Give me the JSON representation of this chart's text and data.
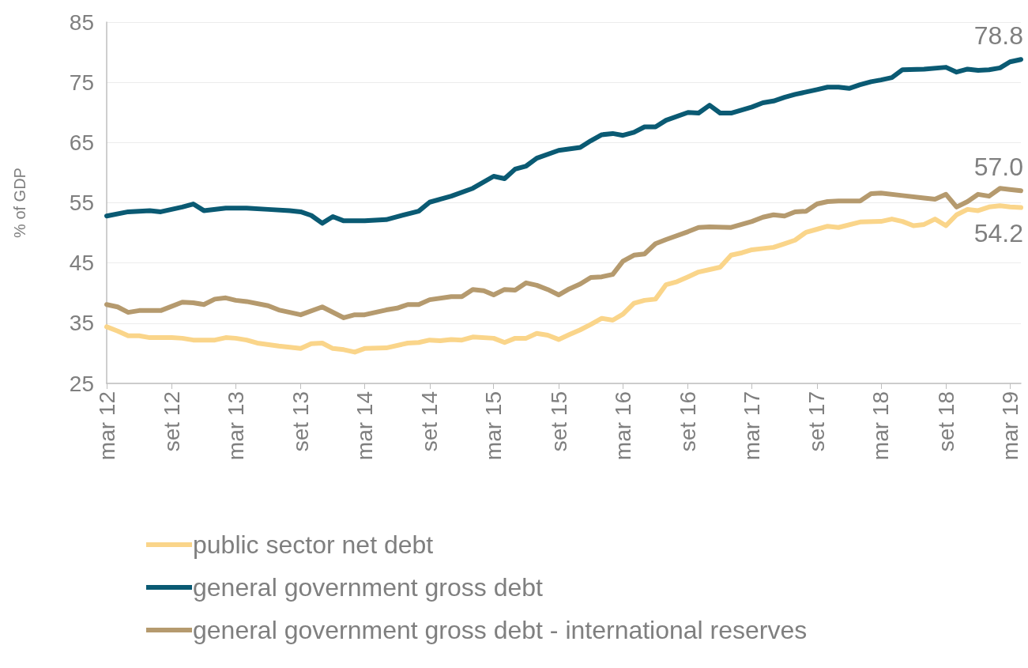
{
  "chart_data": {
    "type": "line",
    "ylabel": "% of GDP",
    "xlim": [
      "2012-03",
      "2019-04"
    ],
    "xticks": [
      {
        "value": "2012-03",
        "label": "mar 12"
      },
      {
        "value": "2012-09",
        "label": "set 12"
      },
      {
        "value": "2013-03",
        "label": "mar 13"
      },
      {
        "value": "2013-09",
        "label": "set 13"
      },
      {
        "value": "2014-03",
        "label": "mar 14"
      },
      {
        "value": "2014-09",
        "label": "set 14"
      },
      {
        "value": "2015-03",
        "label": "mar 15"
      },
      {
        "value": "2015-09",
        "label": "set 15"
      },
      {
        "value": "2016-03",
        "label": "mar 16"
      },
      {
        "value": "2016-09",
        "label": "set 16"
      },
      {
        "value": "2017-03",
        "label": "mar 17"
      },
      {
        "value": "2017-09",
        "label": "set 17"
      },
      {
        "value": "2018-03",
        "label": "mar 18"
      },
      {
        "value": "2018-09",
        "label": "set 18"
      },
      {
        "value": "2019-03",
        "label": "mar 19"
      }
    ],
    "ylim": [
      25,
      85
    ],
    "yticks": [
      25,
      35,
      45,
      55,
      65,
      75,
      85
    ],
    "grid": "y",
    "legend": "bottom",
    "marker": "none",
    "line_style": "solid",
    "series": [
      {
        "name": "public sector net debt",
        "color": "#fad58a",
        "x": [
          "2012-03",
          "2012-04",
          "2012-05",
          "2012-06",
          "2012-07",
          "2012-09",
          "2012-10",
          "2012-11",
          "2012-12",
          "2013-01",
          "2013-02",
          "2013-03",
          "2013-04",
          "2013-05",
          "2013-07",
          "2013-09",
          "2013-10",
          "2013-11",
          "2013-12",
          "2014-01",
          "2014-02",
          "2014-03",
          "2014-05",
          "2014-07",
          "2014-08",
          "2014-09",
          "2014-10",
          "2014-11",
          "2014-12",
          "2015-01",
          "2015-03",
          "2015-04",
          "2015-05",
          "2015-06",
          "2015-07",
          "2015-08",
          "2015-09",
          "2015-10",
          "2015-11",
          "2015-12",
          "2016-01",
          "2016-02",
          "2016-03",
          "2016-04",
          "2016-05",
          "2016-06",
          "2016-07",
          "2016-08",
          "2016-09",
          "2016-10",
          "2016-11",
          "2016-12",
          "2017-01",
          "2017-02",
          "2017-03",
          "2017-04",
          "2017-05",
          "2017-06",
          "2017-07",
          "2017-08",
          "2017-09",
          "2017-10",
          "2017-11",
          "2018-01",
          "2018-03",
          "2018-04",
          "2018-05",
          "2018-06",
          "2018-07",
          "2018-08",
          "2018-09",
          "2018-10",
          "2018-11",
          "2018-12",
          "2019-01",
          "2019-02",
          "2019-03",
          "2019-04"
        ],
        "values": [
          34.4,
          33.7,
          32.9,
          32.9,
          32.6,
          32.6,
          32.5,
          32.2,
          32.2,
          32.2,
          32.6,
          32.5,
          32.2,
          31.7,
          31.2,
          30.8,
          31.6,
          31.7,
          30.8,
          30.6,
          30.2,
          30.8,
          30.9,
          31.7,
          31.8,
          32.2,
          32.1,
          32.3,
          32.2,
          32.7,
          32.5,
          31.8,
          32.5,
          32.5,
          33.3,
          33.0,
          32.3,
          33.1,
          33.9,
          34.8,
          35.8,
          35.5,
          36.5,
          38.3,
          38.8,
          39.0,
          41.4,
          41.9,
          42.7,
          43.5,
          43.9,
          44.3,
          46.3,
          46.7,
          47.2,
          47.4,
          47.6,
          48.2,
          48.8,
          50.1,
          50.6,
          51.1,
          50.9,
          51.8,
          51.9,
          52.3,
          51.9,
          51.2,
          51.4,
          52.3,
          51.2,
          53.0,
          53.9,
          53.7,
          54.3,
          54.5,
          54.3,
          54.2
        ]
      },
      {
        "name": "general government gross debt",
        "color": "#0a5a73",
        "x": [
          "2012-03",
          "2012-05",
          "2012-07",
          "2012-08",
          "2012-10",
          "2012-11",
          "2012-12",
          "2013-02",
          "2013-04",
          "2013-06",
          "2013-08",
          "2013-09",
          "2013-10",
          "2013-11",
          "2013-12",
          "2014-01",
          "2014-03",
          "2014-05",
          "2014-06",
          "2014-08",
          "2014-09",
          "2014-11",
          "2015-01",
          "2015-03",
          "2015-04",
          "2015-05",
          "2015-06",
          "2015-07",
          "2015-09",
          "2015-11",
          "2015-12",
          "2016-01",
          "2016-02",
          "2016-03",
          "2016-04",
          "2016-05",
          "2016-06",
          "2016-07",
          "2016-09",
          "2016-10",
          "2016-11",
          "2016-12",
          "2017-01",
          "2017-03",
          "2017-04",
          "2017-05",
          "2017-06",
          "2017-07",
          "2017-09",
          "2017-10",
          "2017-11",
          "2017-12",
          "2018-01",
          "2018-02",
          "2018-03",
          "2018-04",
          "2018-05",
          "2018-07",
          "2018-09",
          "2018-10",
          "2018-11",
          "2018-12",
          "2019-01",
          "2019-02",
          "2019-03",
          "2019-04"
        ],
        "values": [
          52.8,
          53.5,
          53.7,
          53.5,
          54.3,
          54.8,
          53.7,
          54.1,
          54.1,
          53.9,
          53.7,
          53.5,
          52.9,
          51.6,
          52.7,
          52.0,
          52.0,
          52.2,
          52.7,
          53.6,
          55.1,
          56.1,
          57.4,
          59.4,
          59.0,
          60.6,
          61.1,
          62.4,
          63.7,
          64.2,
          65.3,
          66.3,
          66.5,
          66.2,
          66.7,
          67.6,
          67.6,
          68.7,
          70.0,
          69.9,
          71.2,
          69.9,
          69.9,
          70.9,
          71.6,
          71.9,
          72.5,
          73.0,
          73.8,
          74.2,
          74.2,
          74.0,
          74.6,
          75.1,
          75.4,
          75.8,
          77.1,
          77.2,
          77.5,
          76.7,
          77.2,
          77.0,
          77.1,
          77.4,
          78.4,
          78.8
        ]
      },
      {
        "name": "general government gross debt - international reserves",
        "color": "#b59a6e",
        "x": [
          "2012-03",
          "2012-04",
          "2012-05",
          "2012-06",
          "2012-08",
          "2012-10",
          "2012-11",
          "2012-12",
          "2013-01",
          "2013-02",
          "2013-03",
          "2013-04",
          "2013-06",
          "2013-07",
          "2013-09",
          "2013-11",
          "2014-01",
          "2014-02",
          "2014-03",
          "2014-05",
          "2014-06",
          "2014-07",
          "2014-08",
          "2014-09",
          "2014-11",
          "2014-12",
          "2015-01",
          "2015-02",
          "2015-03",
          "2015-04",
          "2015-05",
          "2015-06",
          "2015-07",
          "2015-08",
          "2015-09",
          "2015-10",
          "2015-11",
          "2015-12",
          "2016-01",
          "2016-02",
          "2016-03",
          "2016-04",
          "2016-05",
          "2016-06",
          "2016-07",
          "2016-09",
          "2016-10",
          "2016-11",
          "2017-01",
          "2017-03",
          "2017-04",
          "2017-05",
          "2017-06",
          "2017-07",
          "2017-08",
          "2017-09",
          "2017-10",
          "2017-11",
          "2017-12",
          "2018-01",
          "2018-02",
          "2018-03",
          "2018-05",
          "2018-07",
          "2018-08",
          "2018-09",
          "2018-10",
          "2018-11",
          "2018-12",
          "2019-01",
          "2019-02",
          "2019-03",
          "2019-04"
        ],
        "values": [
          38.1,
          37.7,
          36.8,
          37.1,
          37.1,
          38.5,
          38.4,
          38.1,
          39.0,
          39.2,
          38.8,
          38.6,
          37.9,
          37.2,
          36.4,
          37.7,
          35.9,
          36.4,
          36.4,
          37.2,
          37.5,
          38.1,
          38.1,
          38.9,
          39.4,
          39.4,
          40.6,
          40.4,
          39.7,
          40.6,
          40.5,
          41.7,
          41.3,
          40.6,
          39.7,
          40.7,
          41.5,
          42.6,
          42.7,
          43.1,
          45.3,
          46.3,
          46.5,
          48.2,
          48.9,
          50.2,
          50.9,
          51.0,
          50.9,
          51.9,
          52.6,
          53.0,
          52.8,
          53.5,
          53.6,
          54.8,
          55.2,
          55.3,
          55.3,
          55.3,
          56.5,
          56.6,
          56.2,
          55.8,
          55.6,
          56.4,
          54.3,
          55.2,
          56.4,
          56.1,
          57.4,
          57.2,
          57.0
        ]
      }
    ],
    "annotations": [
      {
        "text": "78.8",
        "x": "2019-04",
        "y": 78.8
      },
      {
        "text": "57.0",
        "x": "2019-04",
        "y": 57.0
      },
      {
        "text": "54.2",
        "x": "2019-04",
        "y": 54.2
      }
    ]
  }
}
